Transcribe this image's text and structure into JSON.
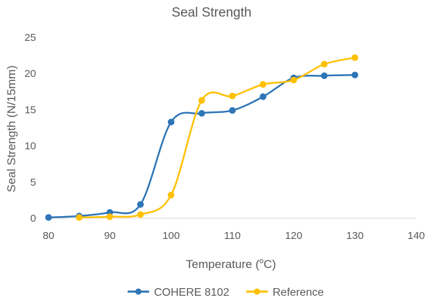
{
  "chart_data": {
    "type": "line",
    "title": "Seal Strength",
    "xlabel_main": "Temperature (",
    "xlabel_sup": "o",
    "xlabel_unit": "C)",
    "ylabel": "Seal Strength (N/15mm)",
    "xlim": [
      80,
      140
    ],
    "ylim": [
      0,
      25
    ],
    "x_ticks": [
      "80",
      "90",
      "100",
      "110",
      "120",
      "130",
      "140"
    ],
    "y_ticks": [
      "0",
      "5",
      "10",
      "15",
      "20",
      "25"
    ],
    "grid": false,
    "smooth": true,
    "legend_position": "bottom",
    "series": [
      {
        "name": "COHERE 8102",
        "color": "#2E75B6",
        "x": [
          80,
          85,
          90,
          95,
          100,
          105,
          110,
          115,
          120,
          125,
          130
        ],
        "y": [
          0.1,
          0.3,
          0.8,
          1.9,
          13.3,
          14.5,
          14.9,
          16.8,
          19.4,
          19.7,
          19.8
        ]
      },
      {
        "name": "Reference",
        "color": "#FFC000",
        "x": [
          85,
          90,
          95,
          100,
          105,
          110,
          115,
          120,
          125,
          130
        ],
        "y": [
          0.1,
          0.2,
          0.5,
          3.2,
          16.3,
          16.9,
          18.5,
          19.1,
          21.3,
          22.2
        ]
      }
    ]
  }
}
